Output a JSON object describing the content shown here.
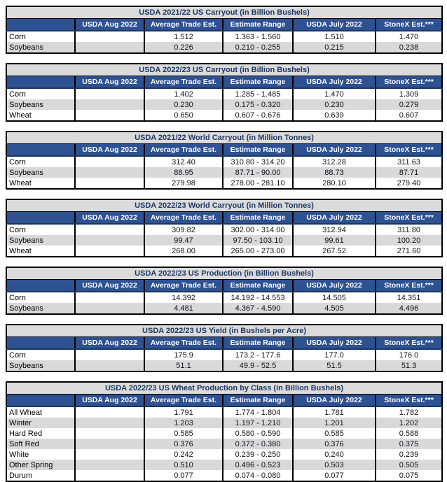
{
  "colors": {
    "header_bg": "#2E5191",
    "header_text": "#FFFFFF",
    "title_bg": "#DBDBDB",
    "title_text": "#1F3864",
    "row_alt_bg": "#D9D9D9",
    "row_bg": "#FFFFFF",
    "border": "#000000"
  },
  "chart_data": [
    {
      "type": "table",
      "title": "USDA 2021/22 US Carryout (in Billion Bushels)",
      "columns": [
        "",
        "USDA Aug 2022",
        "Average Trade Est.",
        "Estimate Range",
        "USDA July 2022",
        "StoneX Est.***"
      ],
      "rows": [
        [
          "Corn",
          "",
          "1.512",
          "1.363 - 1.560",
          "1.510",
          "1.470"
        ],
        [
          "Soybeans",
          "",
          "0.226",
          "0.210 - 0.255",
          "0.215",
          "0.238"
        ]
      ]
    },
    {
      "type": "table",
      "title": "USDA 2022/23 US Carryout (in Billion Bushels)",
      "columns": [
        "",
        "USDA Aug 2022",
        "Average Trade Est.",
        "Estimate Range",
        "USDA July 2022",
        "StoneX Est.***"
      ],
      "rows": [
        [
          "Corn",
          "",
          "1.402",
          "1.285 - 1.485",
          "1.470",
          "1.309"
        ],
        [
          "Soybeans",
          "",
          "0.230",
          "0.175 - 0.320",
          "0.230",
          "0.279"
        ],
        [
          "Wheat",
          "",
          "0.650",
          "0.607 - 0.676",
          "0.639",
          "0.607"
        ]
      ]
    },
    {
      "type": "table",
      "title": "USDA 2021/22 World Carryout (in Million Tonnes)",
      "columns": [
        "",
        "USDA Aug 2022",
        "Average Trade Est.",
        "Estimate Range",
        "USDA July 2022",
        "StoneX Est.***"
      ],
      "rows": [
        [
          "Corn",
          "",
          "312.40",
          "310.80 - 314.20",
          "312.28",
          "311.63"
        ],
        [
          "Soybeans",
          "",
          "88.95",
          "87.71 - 90.00",
          "88.73",
          "87.71"
        ],
        [
          "Wheat",
          "",
          "279.98",
          "278.00 - 281.10",
          "280.10",
          "279.40"
        ]
      ]
    },
    {
      "type": "table",
      "title": "USDA 2022/23 World Carryout (in Million Tonnes)",
      "columns": [
        "",
        "USDA Aug 2022",
        "Average Trade Est.",
        "Estimate Range",
        "USDA July 2022",
        "StoneX Est.***"
      ],
      "rows": [
        [
          "Corn",
          "",
          "309.82",
          "302.00 - 314.00",
          "312.94",
          "311.80"
        ],
        [
          "Soybeans",
          "",
          "99.47",
          "97.50 - 103.10",
          "99.61",
          "100.20"
        ],
        [
          "Wheat",
          "",
          "268.00",
          "265.00 - 273.00",
          "267.52",
          "271.60"
        ]
      ]
    },
    {
      "type": "table",
      "title": "USDA 2022/23 US Production (in Billion Bushels)",
      "columns": [
        "",
        "USDA Aug 2022",
        "Average Trade Est.",
        "Estimate Range",
        "USDA July 2022",
        "StoneX Est.***"
      ],
      "rows": [
        [
          "Corn",
          "",
          "14.392",
          "14.192 - 14.553",
          "14.505",
          "14.351"
        ],
        [
          "Soybeans",
          "",
          "4.481",
          "4.367 - 4.590",
          "4.505",
          "4.496"
        ]
      ]
    },
    {
      "type": "table",
      "title": "USDA 2022/23 US Yield (in Bushels per Acre)",
      "columns": [
        "",
        "USDA Aug 2022",
        "Average Trade Est.",
        "Estimate Range",
        "USDA July 2022",
        "StoneX Est.***"
      ],
      "rows": [
        [
          "Corn",
          "",
          "175.9",
          "173.2 - 177.6",
          "177.0",
          "176.0"
        ],
        [
          "Soybeans",
          "",
          "51.1",
          "49.9 - 52.5",
          "51.5",
          "51.3"
        ]
      ]
    },
    {
      "type": "table",
      "title": "USDA 2022/23 US Wheat Production by Class (in Billion Bushels)",
      "columns": [
        "",
        "USDA Aug 2022",
        "Average Trade Est.",
        "Estimate Range",
        "USDA July 2022",
        "StoneX Est.***"
      ],
      "rows": [
        [
          "All Wheat",
          "",
          "1.791",
          "1.774 - 1.804",
          "1.781",
          "1.782"
        ],
        [
          "Winter",
          "",
          "1.203",
          "1.197 - 1.210",
          "1.201",
          "1.202"
        ],
        [
          "Hard Red",
          "",
          "0.585",
          "0.580 - 0.590",
          "0.585",
          "0.588"
        ],
        [
          "Soft Red",
          "",
          "0.376",
          "0.372 - 0.380",
          "0.376",
          "0.375"
        ],
        [
          "White",
          "",
          "0.242",
          "0.239 - 0.250",
          "0.240",
          "0.239"
        ],
        [
          "Other Spring",
          "",
          "0.510",
          "0.496 - 0.523",
          "0.503",
          "0.505"
        ],
        [
          "Durum",
          "",
          "0.077",
          "0.074 - 0.080",
          "0.077",
          "0.075"
        ]
      ]
    }
  ]
}
